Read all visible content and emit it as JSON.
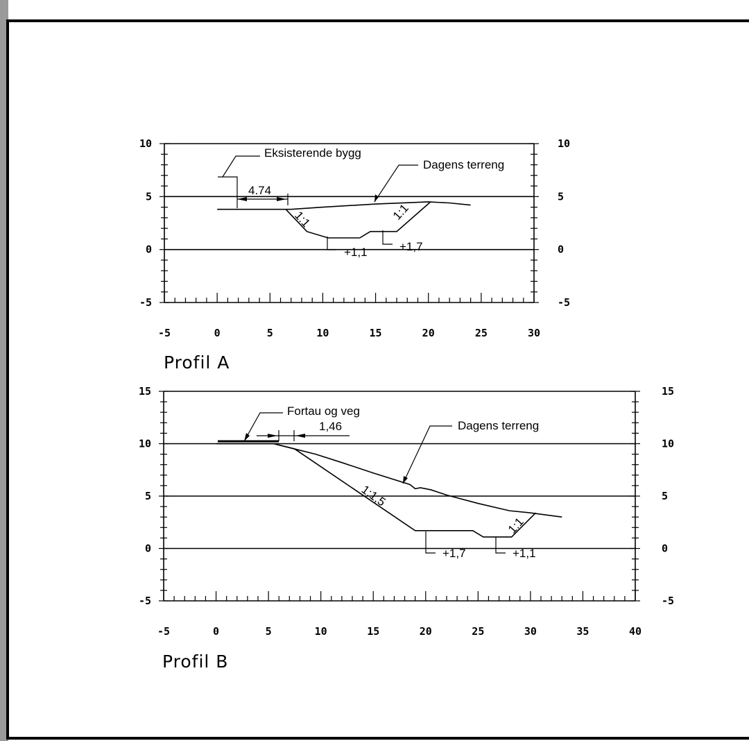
{
  "chart_data": [
    {
      "type": "line",
      "title": "Profil A",
      "xlim": [
        -5,
        30
      ],
      "ylim": [
        -5,
        10
      ],
      "x_ticks": [
        "-5",
        "0",
        "5",
        "10",
        "15",
        "20",
        "25",
        "30"
      ],
      "y_ticks": [
        "10",
        "5",
        "0",
        "-5"
      ],
      "gridlines_y": [
        10,
        5,
        0
      ],
      "series": [
        {
          "x": [
            0,
            7,
            10,
            15,
            20,
            22,
            24
          ],
          "y": [
            3.8,
            3.8,
            4.0,
            4.3,
            4.5,
            4.4,
            4.2
          ]
        },
        {
          "x": [
            6.5,
            8.5,
            10.5,
            13.5,
            14.5,
            17,
            20.2
          ],
          "y": [
            3.8,
            1.7,
            1.1,
            1.1,
            1.7,
            1.7,
            4.5
          ]
        }
      ],
      "annotations": {
        "building": "Eksisterende bygg",
        "terrain": "Dagens terreng",
        "distance": "4.74",
        "slope_left": "1:1",
        "slope_right": "1:1",
        "level_low": "+1,1",
        "level_high": "+1,7"
      }
    },
    {
      "type": "line",
      "title": "Profil B",
      "xlim": [
        -5,
        40
      ],
      "ylim": [
        -5,
        15
      ],
      "x_ticks": [
        "-5",
        "0",
        "5",
        "10",
        "15",
        "20",
        "25",
        "30",
        "35",
        "40"
      ],
      "y_ticks": [
        "15",
        "10",
        "5",
        "0",
        "-5"
      ],
      "gridlines_y": [
        15,
        10,
        5,
        0
      ],
      "series": [
        {
          "x": [
            0,
            5.5,
            7.5,
            9.5,
            12,
            15,
            18.5,
            19,
            19.5,
            20.5,
            22,
            25,
            28,
            30,
            33
          ],
          "y": [
            10,
            10,
            9.5,
            9,
            8.2,
            7.2,
            6.1,
            5.7,
            5.8,
            5.6,
            5.1,
            4.3,
            3.6,
            3.4,
            3
          ]
        },
        {
          "x": [
            5.5,
            7.5,
            19,
            24.5,
            25.5,
            28.2,
            30.5
          ],
          "y": [
            10,
            9.5,
            1.7,
            1.7,
            1.1,
            1.1,
            3.4
          ]
        }
      ],
      "annotations": {
        "road": "Fortau og veg",
        "terrain": "Dagens terreng",
        "distance": "1,46",
        "slope_left": "1:1,5",
        "slope_right": "1:1",
        "level_high": "+1,7",
        "level_low": "+1,1"
      }
    }
  ]
}
